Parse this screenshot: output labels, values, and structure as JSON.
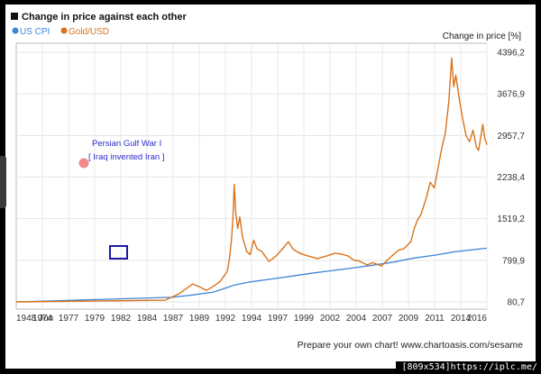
{
  "chart_data": {
    "type": "line",
    "title": "Change in price against each other",
    "ylabel": "Change in price [%]",
    "legend_position": "top-left",
    "ylim": [
      80.7,
      4396.2
    ],
    "y_ticks": [
      "4396,2",
      "3676,9",
      "2957,7",
      "2238,4",
      "1519,2",
      "799,9",
      "80,7"
    ],
    "x_tick_labels": [
      "1948 Jun",
      "1974",
      "1977",
      "1979",
      "1982",
      "1984",
      "1987",
      "1989",
      "1992",
      "1994",
      "1997",
      "1999",
      "2002",
      "2004",
      "2007",
      "2009",
      "2011",
      "2014",
      "2016"
    ],
    "grid": true,
    "series": [
      {
        "name": "US CPI",
        "color": "#3f86d6",
        "x": [
          1948.5,
          1971,
          1974,
          1977,
          1979,
          1980,
          1982,
          1985,
          1988,
          1991,
          1994,
          1997,
          2000,
          2003,
          2006,
          2009,
          2012,
          2016.5
        ],
        "values": [
          80.7,
          160,
          200,
          250,
          330,
          370,
          420,
          470,
          520,
          575,
          620,
          665,
          715,
          770,
          840,
          890,
          950,
          1010
        ]
      },
      {
        "name": "Gold/USD",
        "color": "#d9731c",
        "x": [
          1948.5,
          1970,
          1972,
          1974,
          1975,
          1976,
          1977,
          1978,
          1979,
          1979.3,
          1979.6,
          1979.8,
          1980,
          1980.2,
          1980.5,
          1980.8,
          1981.2,
          1981.8,
          1982.3,
          1982.8,
          1983.3,
          1984,
          1985,
          1986,
          1987,
          1987.8,
          1988.5,
          1989.5,
          1990.5,
          1992,
          1993.5,
          1994.5,
          1995.5,
          1996.5,
          1997.3,
          1998,
          1999.2,
          2000,
          2001.3,
          2002,
          2003,
          2003.8,
          2004.5,
          2005.5,
          2006,
          2006.5,
          2007,
          2007.8,
          2008.3,
          2008.9,
          2009.3,
          2010,
          2010.5,
          2011,
          2011.4,
          2011.7,
          2012,
          2012.5,
          2013,
          2013.5,
          2014,
          2014.5,
          2015,
          2015.3,
          2015.9,
          2016.2,
          2016.5
        ],
        "values": [
          80.7,
          110,
          220,
          390,
          340,
          280,
          350,
          440,
          610,
          820,
          1150,
          1520,
          2110,
          1650,
          1350,
          1550,
          1200,
          950,
          900,
          1150,
          1000,
          950,
          780,
          870,
          1000,
          1120,
          990,
          920,
          880,
          830,
          880,
          920,
          910,
          870,
          800,
          790,
          720,
          760,
          700,
          790,
          900,
          980,
          1000,
          1120,
          1350,
          1500,
          1600,
          1900,
          2150,
          2050,
          2300,
          2750,
          3000,
          3550,
          4300,
          3800,
          4000,
          3600,
          3250,
          2950,
          2850,
          3050,
          2750,
          2700,
          3150,
          2900,
          2800
        ]
      }
    ],
    "annotations": [
      {
        "text_line1": "Persian Gulf War I",
        "text_line2": "[ Iraq invented Iran ]"
      }
    ]
  },
  "footer": "Prepare your own chart! www.chartoasis.com/sesame",
  "watermark": "[809x534]https://iplc.me/"
}
